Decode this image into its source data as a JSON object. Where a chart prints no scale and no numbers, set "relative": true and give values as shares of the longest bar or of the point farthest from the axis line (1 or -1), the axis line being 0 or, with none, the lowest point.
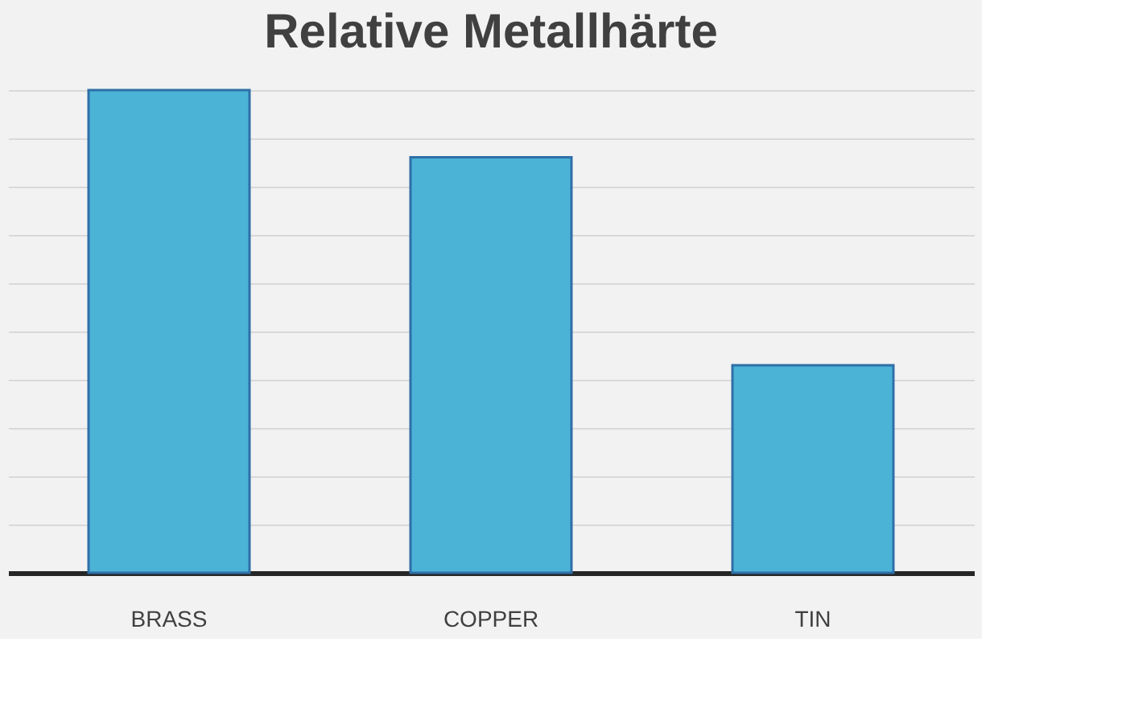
{
  "chart_data": {
    "type": "bar",
    "title": "Relative Metallhärte",
    "categories": [
      "BRASS",
      "COPPER",
      "TIN"
    ],
    "values": [
      1,
      0.861,
      0.43
    ],
    "color": "#4bb3d6",
    "relative": true,
    "grid": "y"
  }
}
